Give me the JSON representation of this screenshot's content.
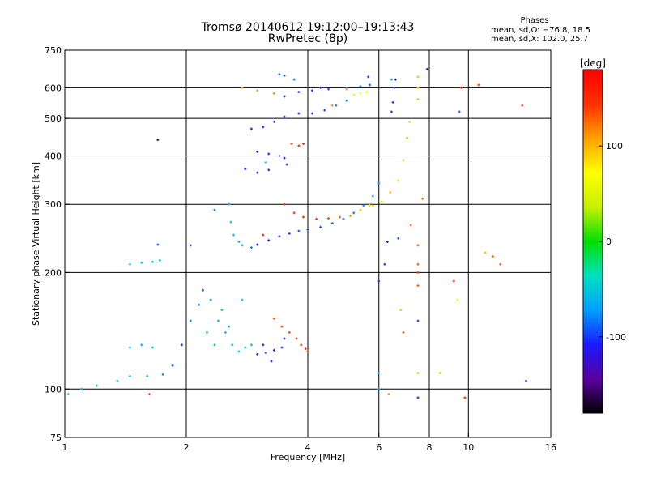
{
  "chart_data": {
    "type": "scatter",
    "title": "Tromsø 20140612 19:12:00–19:13:43",
    "subtitle": "RwPretec (8p)",
    "xlabel": "Frequency [MHz]",
    "ylabel": "Stationary phase Virtual Height [km]",
    "x_scale": "log",
    "y_scale": "log",
    "xlim": [
      1,
      16
    ],
    "ylim": [
      75,
      750
    ],
    "x_ticks": [
      1,
      2,
      4,
      6,
      8,
      10,
      16
    ],
    "y_ticks": [
      75,
      100,
      200,
      300,
      400,
      500,
      600,
      750
    ],
    "grid": true,
    "phases_header": "Phases",
    "phases_lines": [
      "mean, sd,O: −76.8, 18.5",
      "mean, sd,X: 102.0, 25.7"
    ],
    "colorbar": {
      "label": "[deg]",
      "range": [
        -180,
        180
      ],
      "ticks": [
        100,
        0,
        -100
      ],
      "colors": [
        "#000000",
        "#5a00a0",
        "#1a1aff",
        "#00a0ff",
        "#00e0c0",
        "#00e000",
        "#c8f000",
        "#ffff00",
        "#ffa000",
        "#ff3000",
        "#ff0000"
      ]
    },
    "series": [
      {
        "points": [
          [
            1.02,
            97,
            -55
          ],
          [
            1.1,
            100,
            -60
          ],
          [
            1.2,
            102,
            -50
          ],
          [
            1.35,
            105,
            -55
          ],
          [
            1.45,
            108,
            -60
          ],
          [
            1.6,
            108,
            -60
          ],
          [
            1.75,
            109,
            -80
          ],
          [
            1.85,
            115,
            -90
          ],
          [
            1.95,
            130,
            -95
          ],
          [
            1.45,
            128,
            -55
          ],
          [
            1.55,
            130,
            -60
          ],
          [
            1.65,
            128,
            -60
          ]
        ]
      },
      {
        "points": [
          [
            2.05,
            150,
            -80
          ],
          [
            2.15,
            165,
            -85
          ],
          [
            2.2,
            180,
            -85
          ],
          [
            2.3,
            170,
            -75
          ],
          [
            2.4,
            150,
            -60
          ],
          [
            2.5,
            140,
            -55
          ],
          [
            2.6,
            130,
            -60
          ],
          [
            2.7,
            125,
            -50
          ],
          [
            2.8,
            128,
            -55
          ],
          [
            2.9,
            130,
            -60
          ],
          [
            2.35,
            130,
            -55
          ],
          [
            2.45,
            160,
            -55
          ],
          [
            2.55,
            145,
            -70
          ],
          [
            2.75,
            170,
            -55
          ],
          [
            2.25,
            140,
            -70
          ]
        ]
      },
      {
        "points": [
          [
            3.0,
            123,
            -110
          ],
          [
            3.15,
            124,
            -110
          ],
          [
            3.3,
            126,
            -110
          ],
          [
            3.1,
            130,
            -115
          ],
          [
            3.25,
            118,
            -105
          ],
          [
            3.45,
            128,
            -100
          ],
          [
            3.5,
            135,
            -100
          ]
        ]
      },
      {
        "points": [
          [
            3.3,
            152,
            130
          ],
          [
            3.45,
            145,
            135
          ],
          [
            3.6,
            140,
            140
          ],
          [
            3.75,
            135,
            145
          ],
          [
            3.85,
            130,
            140
          ],
          [
            3.95,
            127,
            140
          ],
          [
            4.0,
            125,
            140
          ]
        ]
      },
      {
        "points": [
          [
            1.45,
            210,
            -55
          ],
          [
            1.55,
            212,
            -55
          ],
          [
            1.65,
            213,
            -55
          ],
          [
            1.72,
            215,
            -55
          ]
        ]
      },
      {
        "points": [
          [
            2.55,
            300,
            -55
          ],
          [
            2.58,
            270,
            -55
          ],
          [
            2.62,
            250,
            -55
          ],
          [
            2.7,
            240,
            -60
          ],
          [
            2.75,
            235,
            -60
          ],
          [
            2.9,
            232,
            -80
          ]
        ]
      },
      {
        "points": [
          [
            3.0,
            236,
            -110
          ],
          [
            3.2,
            242,
            -115
          ],
          [
            3.4,
            248,
            -105
          ],
          [
            3.6,
            252,
            -100
          ],
          [
            3.8,
            256,
            -95
          ],
          [
            4.0,
            258,
            -95
          ],
          [
            4.3,
            262,
            -95
          ],
          [
            4.6,
            268,
            -90
          ],
          [
            4.9,
            275,
            -85
          ],
          [
            5.2,
            285,
            -85
          ],
          [
            5.5,
            298,
            -80
          ],
          [
            5.8,
            315,
            -80
          ],
          [
            6.0,
            340,
            -75
          ]
        ]
      },
      {
        "points": [
          [
            3.5,
            300,
            150
          ],
          [
            3.7,
            285,
            150
          ],
          [
            3.9,
            278,
            145
          ],
          [
            4.2,
            275,
            140
          ],
          [
            4.5,
            276,
            135
          ],
          [
            4.8,
            278,
            130
          ],
          [
            5.1,
            280,
            110
          ],
          [
            5.4,
            290,
            95
          ],
          [
            5.7,
            298,
            80
          ]
        ]
      },
      {
        "points": [
          [
            5.8,
            298,
            90
          ],
          [
            6.1,
            305,
            90
          ],
          [
            6.4,
            322,
            95
          ],
          [
            6.7,
            345,
            90
          ],
          [
            6.9,
            390,
            95
          ],
          [
            7.05,
            445,
            100
          ],
          [
            7.15,
            490,
            100
          ]
        ]
      },
      {
        "points": [
          [
            6.55,
            600,
            -110
          ],
          [
            6.6,
            630,
            -110
          ],
          [
            6.5,
            550,
            -100
          ],
          [
            6.45,
            520,
            -100
          ]
        ]
      },
      {
        "points": [
          [
            7.5,
            560,
            100
          ],
          [
            7.5,
            600,
            100
          ],
          [
            7.5,
            640,
            100
          ]
        ]
      },
      {
        "points": [
          [
            3.0,
            410,
            -110
          ],
          [
            3.2,
            405,
            -100
          ],
          [
            3.4,
            400,
            -110
          ],
          [
            3.5,
            395,
            -110
          ],
          [
            3.55,
            380,
            -100
          ],
          [
            2.8,
            370,
            -105
          ],
          [
            3.0,
            362,
            -110
          ],
          [
            3.2,
            368,
            -100
          ]
        ]
      },
      {
        "points": [
          [
            3.65,
            430,
            155
          ],
          [
            3.8,
            425,
            155
          ],
          [
            3.9,
            430,
            155
          ]
        ]
      },
      {
        "points": [
          [
            2.9,
            470,
            -110
          ],
          [
            3.1,
            475,
            -105
          ],
          [
            3.3,
            490,
            -100
          ],
          [
            3.5,
            505,
            -100
          ],
          [
            3.8,
            515,
            -100
          ],
          [
            4.1,
            515,
            -95
          ],
          [
            4.4,
            525,
            -95
          ],
          [
            4.7,
            540,
            -85
          ],
          [
            5.0,
            555,
            -80
          ]
        ]
      },
      {
        "points": [
          [
            3.5,
            570,
            -100
          ],
          [
            3.8,
            585,
            -105
          ],
          [
            4.1,
            590,
            -100
          ],
          [
            4.5,
            595,
            -95
          ],
          [
            5.0,
            600,
            -80
          ],
          [
            5.4,
            605,
            -70
          ],
          [
            5.7,
            610,
            -85
          ]
        ]
      },
      {
        "points": [
          [
            5.2,
            575,
            80
          ],
          [
            5.4,
            580,
            75
          ],
          [
            5.6,
            585,
            70
          ]
        ]
      },
      {
        "points": [
          [
            2.75,
            600,
            110
          ],
          [
            3.0,
            590,
            110
          ],
          [
            3.3,
            580,
            115
          ]
        ]
      },
      {
        "points": [
          [
            3.5,
            645,
            -90
          ],
          [
            3.7,
            630,
            -80
          ],
          [
            3.4,
            650,
            -100
          ]
        ]
      },
      {
        "points": [
          [
            1.7,
            440,
            -150
          ],
          [
            1.62,
            97,
            150
          ],
          [
            1.7,
            236,
            -90
          ],
          [
            2.05,
            235,
            -90
          ],
          [
            2.35,
            290,
            -80
          ],
          [
            3.15,
            385,
            -60
          ],
          [
            3.1,
            250,
            160
          ],
          [
            4.6,
            540,
            110
          ],
          [
            4.3,
            600,
            -100
          ],
          [
            5.0,
            595,
            130
          ],
          [
            5.65,
            640,
            -110
          ],
          [
            6.45,
            630,
            -60
          ],
          [
            6.3,
            240,
            -110
          ],
          [
            6.2,
            210,
            -100
          ],
          [
            6.0,
            190,
            -100
          ],
          [
            6.0,
            110,
            -60
          ],
          [
            6.0,
            100,
            -70
          ],
          [
            6.35,
            97,
            130
          ],
          [
            6.7,
            245,
            -90
          ],
          [
            6.8,
            160,
            95
          ],
          [
            6.9,
            140,
            130
          ],
          [
            7.2,
            265,
            130
          ],
          [
            7.5,
            235,
            130
          ],
          [
            7.5,
            210,
            130
          ],
          [
            7.5,
            200,
            150
          ],
          [
            7.5,
            185,
            130
          ],
          [
            7.5,
            150,
            -100
          ],
          [
            7.5,
            110,
            100
          ],
          [
            7.5,
            95,
            -110
          ],
          [
            7.7,
            310,
            120
          ],
          [
            7.9,
            670,
            -110
          ],
          [
            8.5,
            110,
            100
          ],
          [
            9.2,
            190,
            150
          ],
          [
            9.4,
            170,
            80
          ],
          [
            9.5,
            520,
            -90
          ],
          [
            9.6,
            600,
            160
          ],
          [
            9.8,
            95,
            160
          ],
          [
            10.6,
            610,
            140
          ],
          [
            11.0,
            225,
            100
          ],
          [
            11.5,
            220,
            120
          ],
          [
            12.0,
            210,
            130
          ],
          [
            13.6,
            540,
            140
          ],
          [
            13.9,
            105,
            -110
          ]
        ]
      }
    ]
  }
}
